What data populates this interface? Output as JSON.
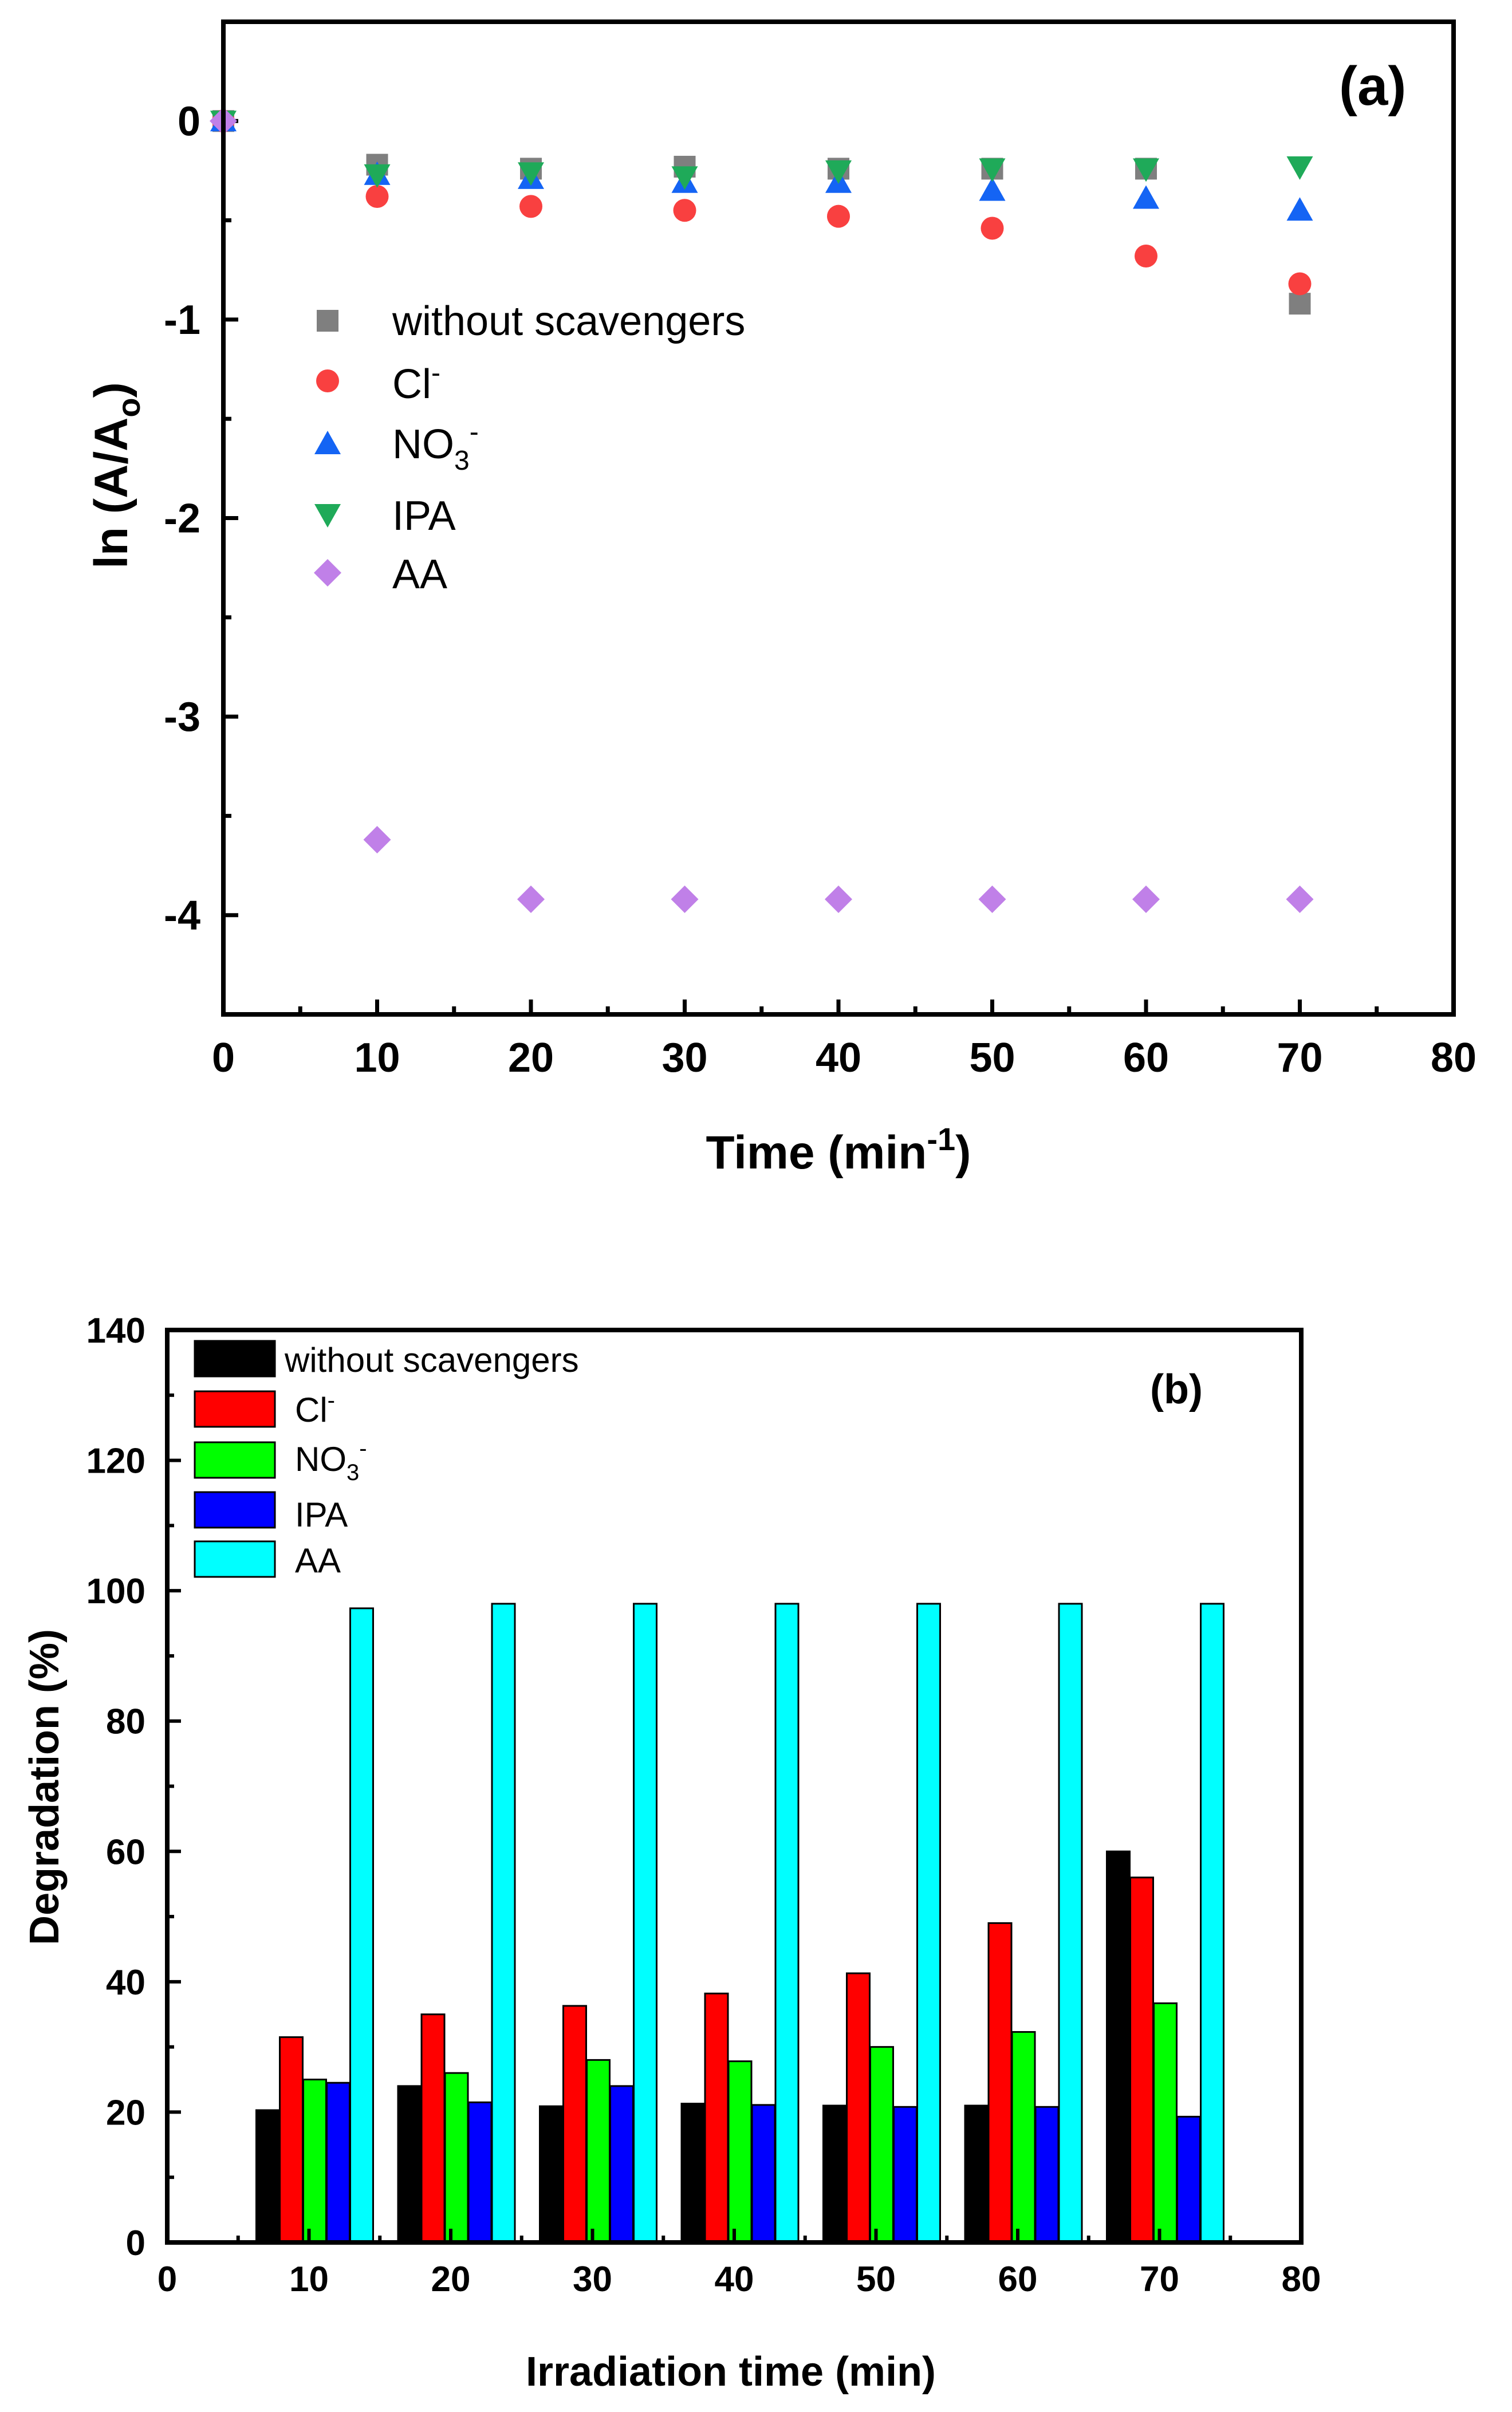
{
  "chart_data": [
    {
      "panel": "(a)",
      "type": "scatter",
      "xlabel": "Time (min",
      "xlabel_sup": "-1",
      "xlabel_close": ")",
      "ylabel_prefix": "ln (A/A",
      "ylabel_sub": "o",
      "ylabel_suffix": ")",
      "xlim": [
        0,
        80
      ],
      "ylim": [
        -4.5,
        0.5
      ],
      "xticks": [
        0,
        10,
        20,
        30,
        40,
        50,
        60,
        70,
        80
      ],
      "yticks": [
        0,
        -1,
        -2,
        -3,
        -4
      ],
      "legend_position": "left-middle",
      "x": [
        0,
        10,
        20,
        30,
        40,
        50,
        60,
        70
      ],
      "series": [
        {
          "name": "without scavengers",
          "marker": "square",
          "color": "#7f7f7f",
          "values": [
            0,
            -0.22,
            -0.24,
            -0.23,
            -0.24,
            -0.24,
            -0.24,
            -0.92
          ]
        },
        {
          "name": "Cl",
          "sup": "-",
          "marker": "circle",
          "color": "#f94040",
          "values": [
            0,
            -0.38,
            -0.43,
            -0.45,
            -0.48,
            -0.54,
            -0.68,
            -0.82
          ]
        },
        {
          "name": "NO",
          "sub": "3",
          "sup": "-",
          "marker": "triangle-up",
          "color": "#1464f4",
          "values": [
            0,
            -0.27,
            -0.29,
            -0.31,
            -0.31,
            -0.35,
            -0.39,
            -0.45
          ]
        },
        {
          "name": "IPA",
          "marker": "triangle-down",
          "color": "#1faa59",
          "values": [
            0,
            -0.27,
            -0.26,
            -0.28,
            -0.25,
            -0.24,
            -0.24,
            -0.23
          ]
        },
        {
          "name": "AA",
          "marker": "diamond",
          "color": "#c080e8",
          "values": [
            0,
            -3.62,
            -3.92,
            -3.92,
            -3.92,
            -3.92,
            -3.92,
            -3.92
          ]
        }
      ]
    },
    {
      "panel": "(b)",
      "type": "bar",
      "xlabel": "Irradiation time (min)",
      "ylabel": "Degradation (%)",
      "xlim": [
        0,
        80
      ],
      "ylim": [
        0,
        140
      ],
      "xticks": [
        0,
        10,
        20,
        30,
        40,
        50,
        60,
        70,
        80
      ],
      "yticks": [
        0,
        20,
        40,
        60,
        80,
        100,
        120,
        140
      ],
      "legend_position": "top-left",
      "categories": [
        10,
        20,
        30,
        40,
        50,
        60,
        70
      ],
      "series": [
        {
          "name": "without scavengers",
          "color": "#000000",
          "values": [
            20.3,
            24.0,
            20.9,
            21.3,
            21.0,
            21.0,
            60.0
          ]
        },
        {
          "name": "Cl",
          "sup": "-",
          "color": "#ff0000",
          "values": [
            31.5,
            35.0,
            36.3,
            38.2,
            41.3,
            49.0,
            56.0
          ]
        },
        {
          "name": "NO",
          "sub": "3",
          "sup": "-",
          "color": "#00ff00",
          "values": [
            25.0,
            26.0,
            28.0,
            27.8,
            30.0,
            32.3,
            36.7
          ]
        },
        {
          "name": "IPA",
          "color": "#0000ff",
          "values": [
            24.5,
            21.5,
            24.0,
            21.1,
            20.8,
            20.8,
            19.3
          ]
        },
        {
          "name": "AA",
          "color": "#00ffff",
          "values": [
            97.3,
            98.0,
            98.0,
            98.0,
            98.0,
            98.0,
            98.0
          ]
        }
      ]
    }
  ]
}
